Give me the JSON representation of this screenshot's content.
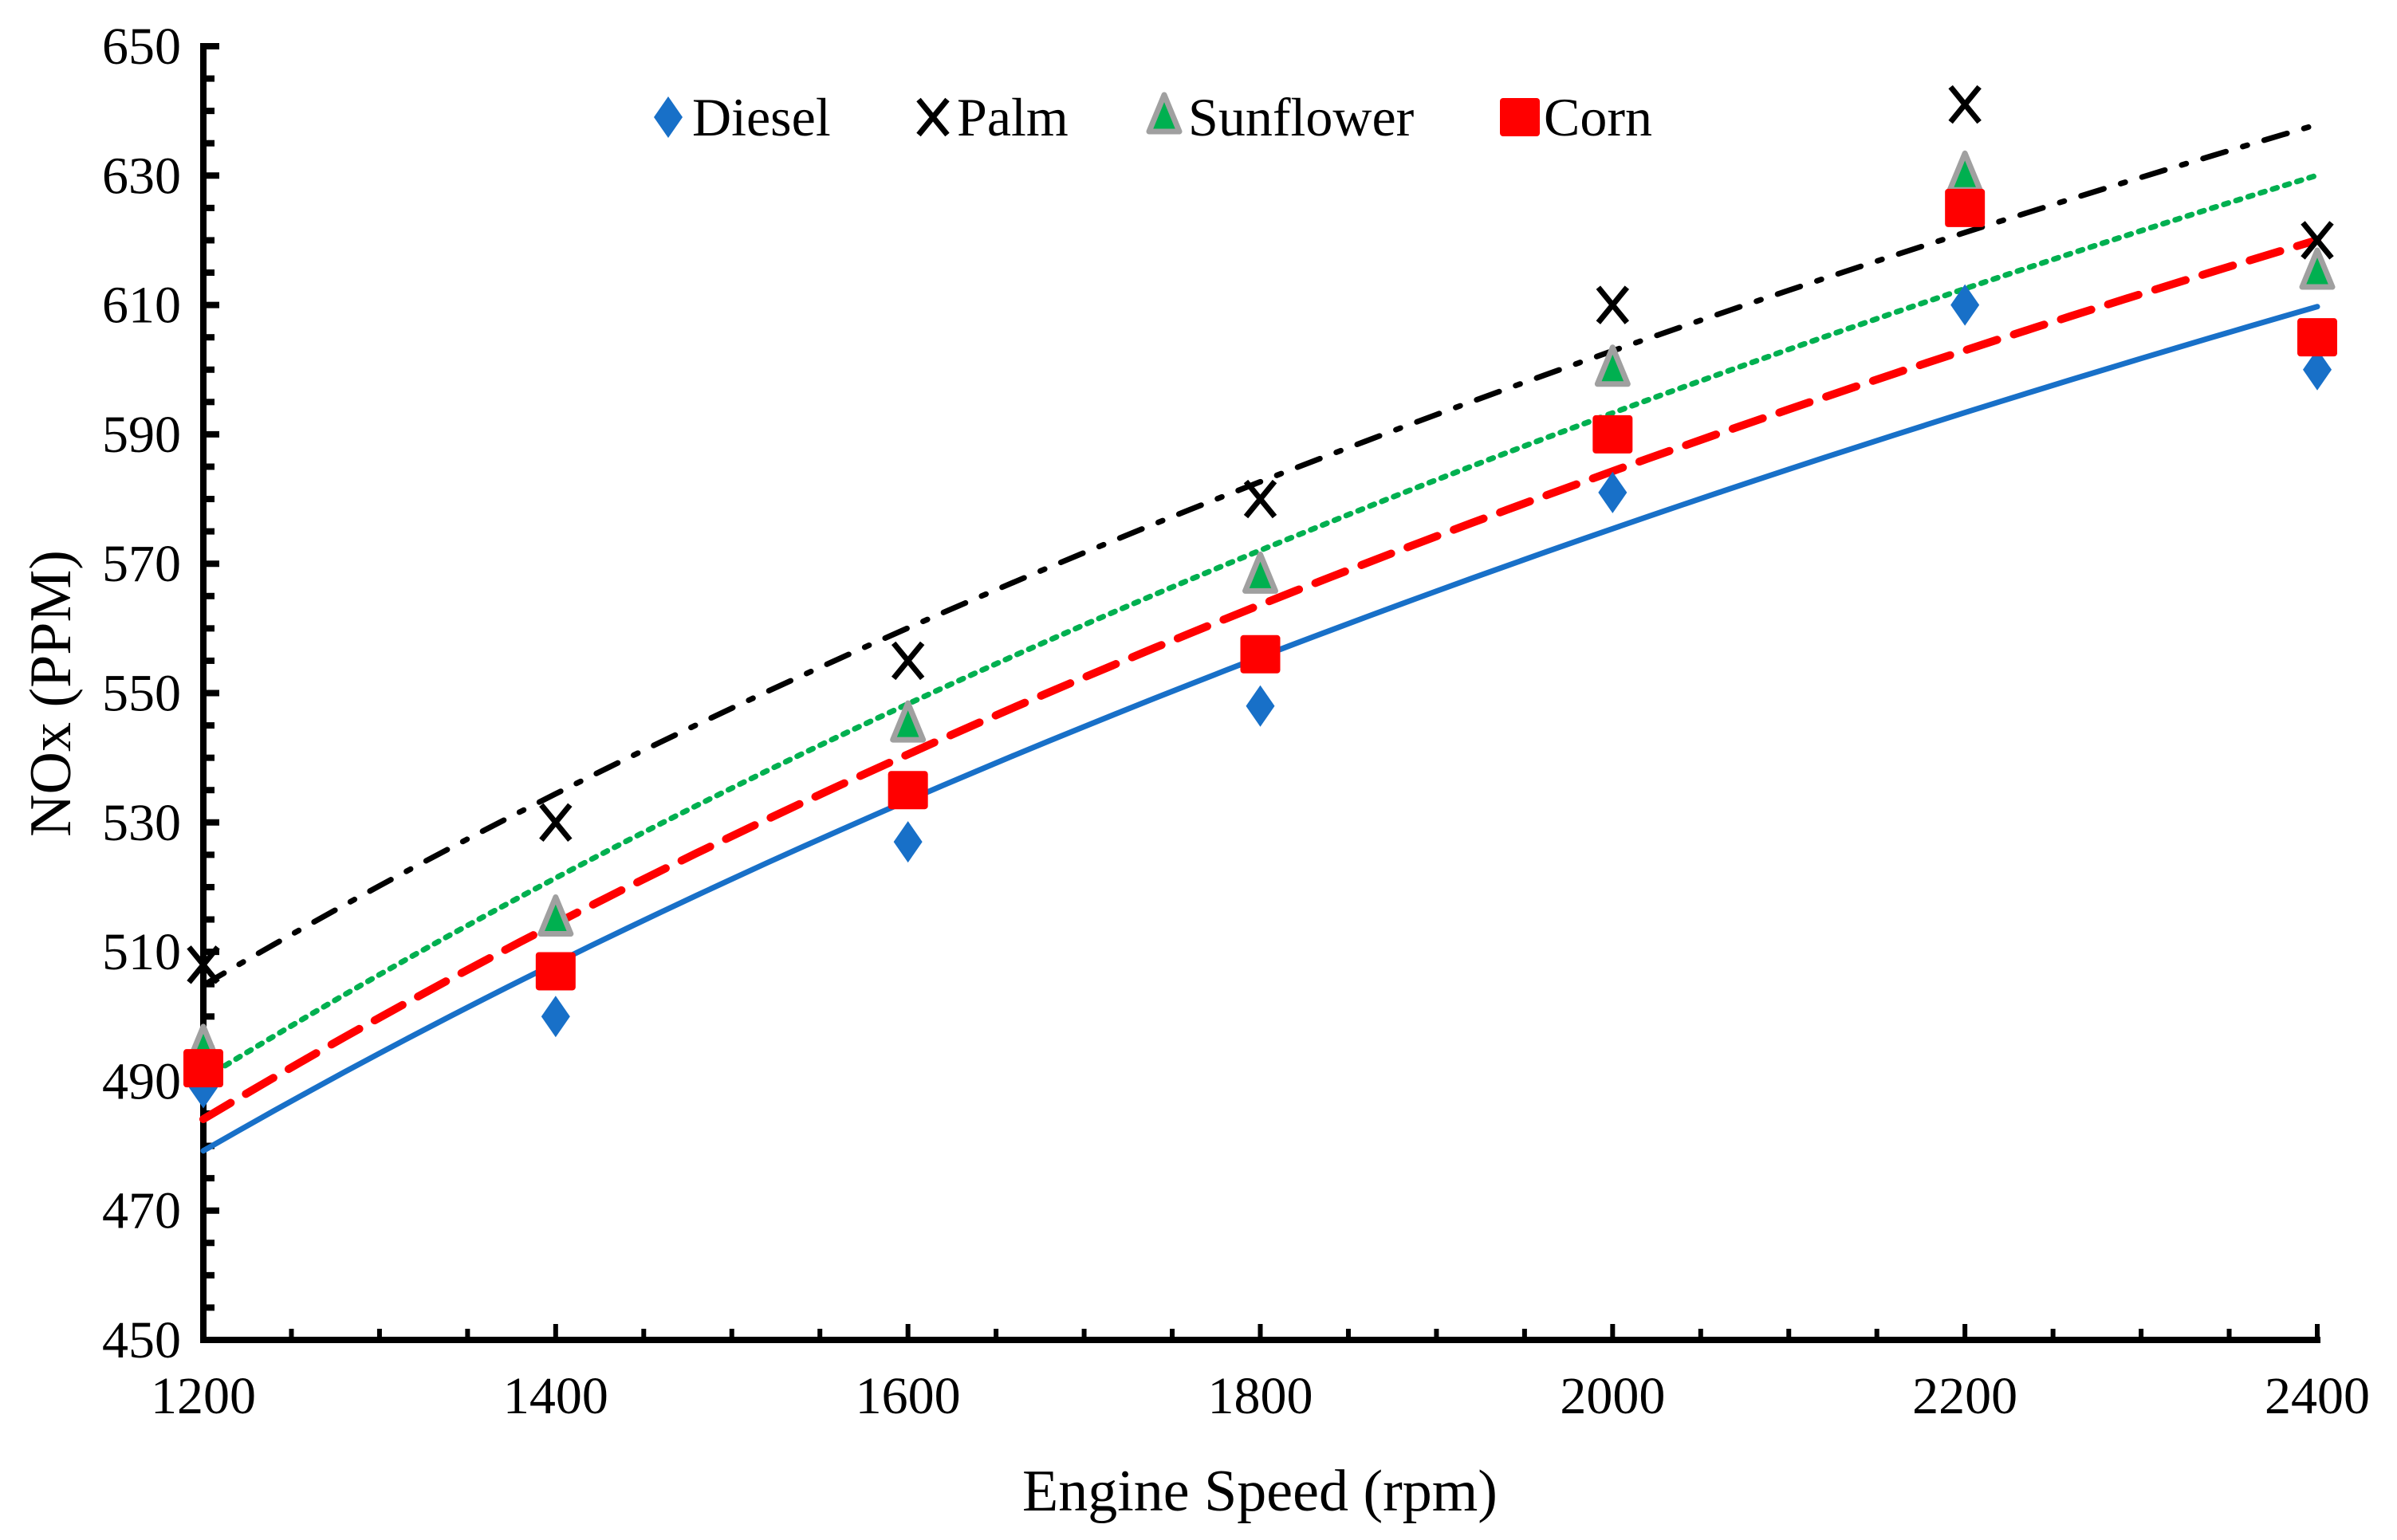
{
  "chart_data": {
    "type": "scatter",
    "title": "",
    "xlabel": "Engine Speed (rpm)",
    "ylabel": "NOx (PPM)",
    "xlim": [
      1200,
      2400
    ],
    "ylim": [
      450,
      650
    ],
    "x_ticks": [
      1200,
      1400,
      1600,
      1800,
      2000,
      2200,
      2400
    ],
    "y_ticks": [
      450,
      470,
      490,
      510,
      530,
      550,
      570,
      590,
      610,
      630,
      650
    ],
    "grid": false,
    "legend_position": "top-center",
    "trendline": "logarithmic",
    "x": [
      1200,
      1400,
      1600,
      1800,
      2000,
      2200,
      2400
    ],
    "series": [
      {
        "name": "Diesel",
        "marker": "diamond",
        "color": "#1870C8",
        "trend_style": "solid",
        "values": [
          489,
          500,
          527,
          548,
          581,
          610,
          600
        ]
      },
      {
        "name": "Palm",
        "marker": "x",
        "color": "#000000",
        "trend_style": "dash-dot",
        "values": [
          508,
          530,
          555,
          580,
          610,
          641,
          620
        ]
      },
      {
        "name": "Sunflower",
        "marker": "triangle",
        "color": "#00B050",
        "edge": "#A0A0A0",
        "trend_style": "dotted",
        "values": [
          495,
          515,
          545,
          568,
          600,
          630,
          615
        ]
      },
      {
        "name": "Corn",
        "marker": "square",
        "color": "#FF0000",
        "trend_style": "dashed",
        "values": [
          492,
          507,
          535,
          556,
          590,
          625,
          605
        ]
      }
    ]
  }
}
